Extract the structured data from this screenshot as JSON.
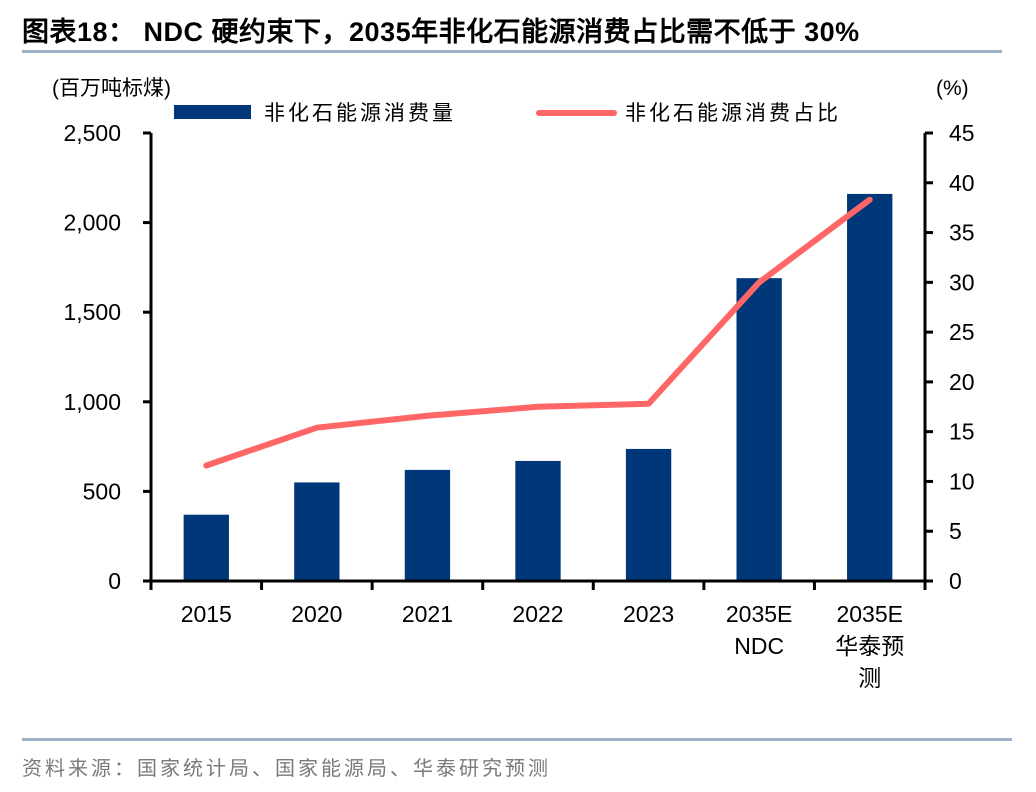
{
  "header": {
    "title": "图表18：  NDC 硬约束下，2035年非化石能源消费占比需不低于 30%"
  },
  "footer": {
    "source": "资料来源：国家统计局、国家能源局、华泰研究预测"
  },
  "chart_data": {
    "type": "bar",
    "title": "NDC 硬约束下，2035年非化石能源消费占比需不低于 30%",
    "categories": [
      [
        "2015"
      ],
      [
        "2020"
      ],
      [
        "2021"
      ],
      [
        "2022"
      ],
      [
        "2023"
      ],
      [
        "2035E",
        "NDC"
      ],
      [
        "2035E",
        "华泰预",
        "测"
      ]
    ],
    "category_names": [
      "2015",
      "2020",
      "2021",
      "2022",
      "2023",
      "2035E NDC",
      "2035E 华泰预测"
    ],
    "y_left": {
      "label": "(百万吨标煤)",
      "lim": [
        0,
        2500
      ],
      "ticks": [
        0,
        500,
        1000,
        1500,
        2000,
        2500
      ],
      "tick_labels": [
        "0",
        "500",
        "1,000",
        "1,500",
        "2,000",
        "2,500"
      ]
    },
    "y_right": {
      "label": "(%)",
      "lim": [
        0,
        45
      ],
      "ticks": [
        0,
        5,
        10,
        15,
        20,
        25,
        30,
        35,
        40,
        45
      ],
      "tick_labels": [
        "0",
        "5",
        "10",
        "15",
        "20",
        "25",
        "30",
        "35",
        "40",
        "45"
      ]
    },
    "series": [
      {
        "name": "非化石能源消费量",
        "type": "bar",
        "axis": "left",
        "color": "#003778",
        "values": [
          370,
          550,
          620,
          670,
          737,
          1690,
          2160
        ]
      },
      {
        "name": "非化石能源消费占比",
        "type": "line",
        "axis": "right",
        "color": "#ff6666",
        "values": [
          11.6,
          15.4,
          16.6,
          17.5,
          17.8,
          30.0,
          38.3
        ]
      }
    ],
    "legend": {
      "placement": "top-center",
      "items": [
        "非化石能源消费量",
        "非化石能源消费占比"
      ]
    },
    "grid": false
  }
}
